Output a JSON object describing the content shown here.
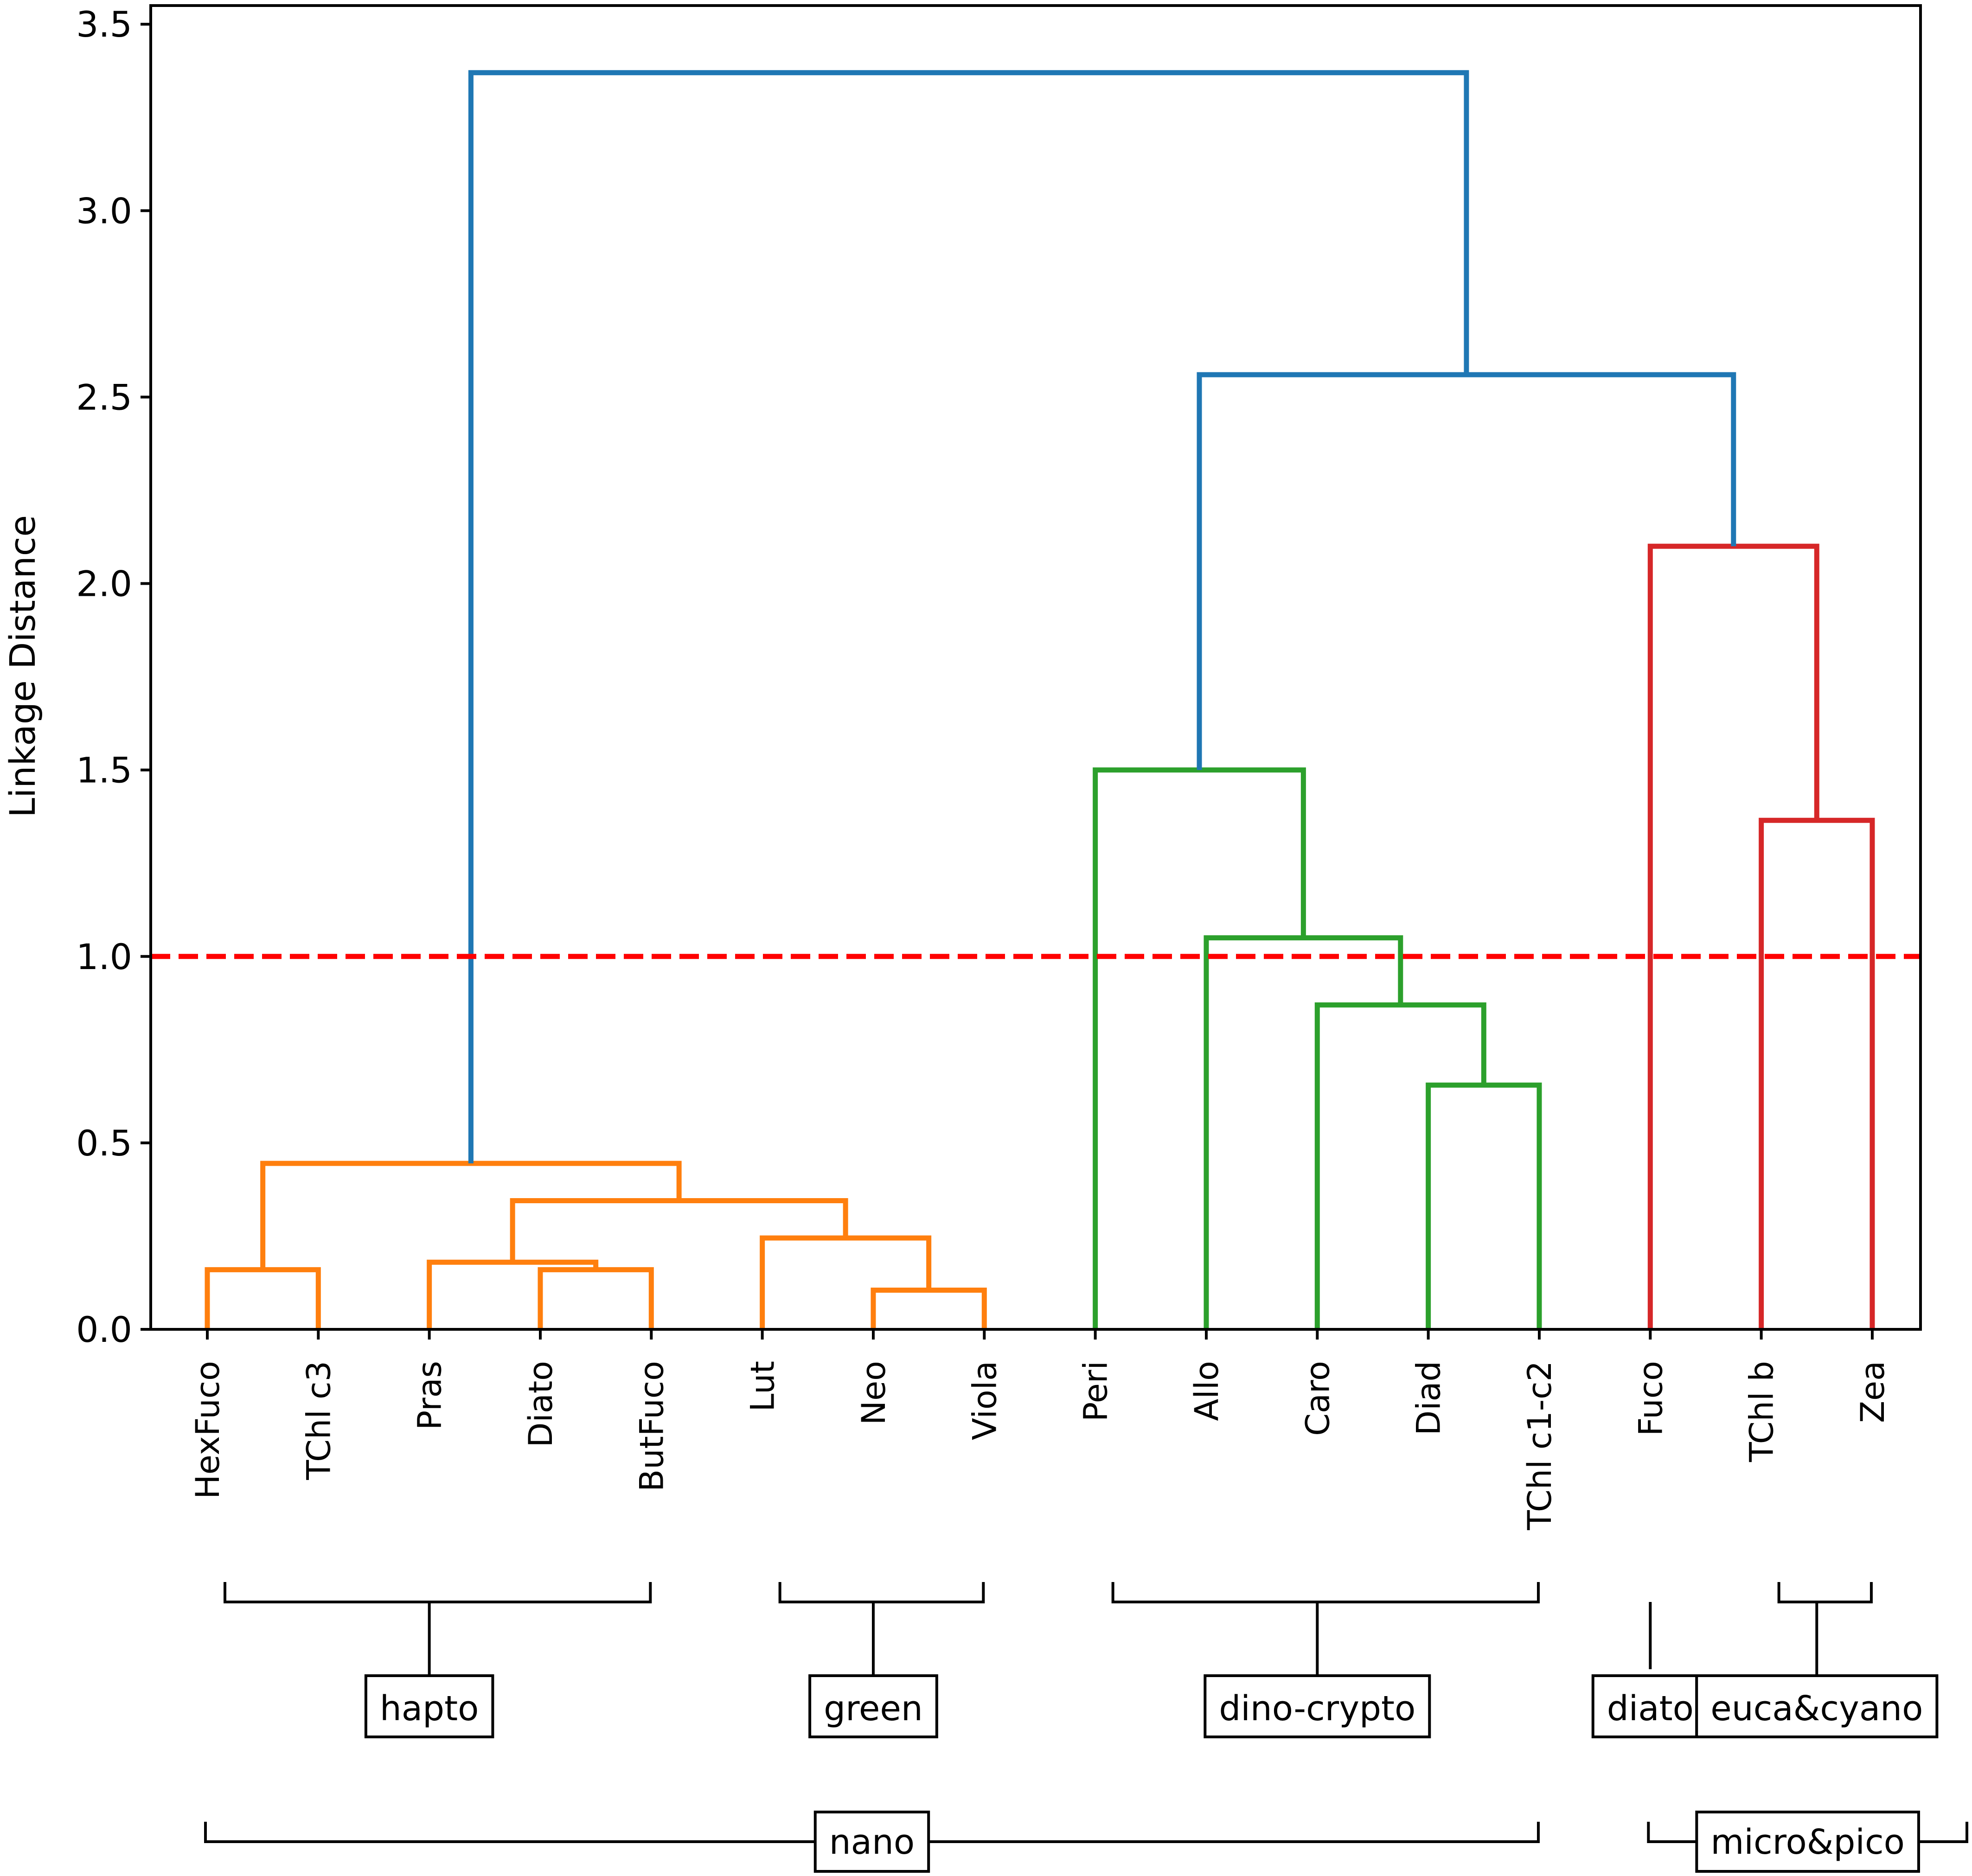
{
  "chart_data": {
    "type": "dendrogram",
    "ylabel": "Linkage Distance",
    "ylim": [
      0,
      3.55
    ],
    "yticks": [
      "0.0",
      "0.5",
      "1.0",
      "1.5",
      "2.0",
      "2.5",
      "3.0",
      "3.5"
    ],
    "threshold": 1.0,
    "colors": {
      "orange": "#ff7f0e",
      "green": "#2ca02c",
      "red": "#d62728",
      "blue": "#1f77b4",
      "threshold": "#ff0000"
    },
    "leaves": [
      "HexFuco",
      "TChl c3",
      "Pras",
      "Diato",
      "ButFuco",
      "Lut",
      "Neo",
      "Viola",
      "Peri",
      "Allo",
      "Caro",
      "Diad",
      "TChl c1-c2",
      "Fuco",
      "TChl b",
      "Zea"
    ],
    "links": [
      {
        "x": [
          0,
          1
        ],
        "y": [
          0,
          0
        ],
        "h": 0.16,
        "color": "orange"
      },
      {
        "x": [
          3,
          4
        ],
        "y": [
          0,
          0
        ],
        "h": 0.16,
        "color": "orange"
      },
      {
        "x": [
          2,
          3.5
        ],
        "y": [
          0,
          0.16
        ],
        "h": 0.18,
        "color": "orange"
      },
      {
        "x": [
          6,
          7
        ],
        "y": [
          0,
          0
        ],
        "h": 0.105,
        "color": "orange"
      },
      {
        "x": [
          5,
          6.5
        ],
        "y": [
          0,
          0.105
        ],
        "h": 0.245,
        "color": "orange"
      },
      {
        "x": [
          2.75,
          5.75
        ],
        "y": [
          0.18,
          0.245
        ],
        "h": 0.345,
        "color": "orange"
      },
      {
        "x": [
          0.5,
          4.25
        ],
        "y": [
          0.16,
          0.345
        ],
        "h": 0.445,
        "color": "orange"
      },
      {
        "x": [
          11,
          12
        ],
        "y": [
          0,
          0
        ],
        "h": 0.655,
        "color": "green"
      },
      {
        "x": [
          10,
          11.5
        ],
        "y": [
          0,
          0.655
        ],
        "h": 0.87,
        "color": "green"
      },
      {
        "x": [
          9,
          10.75
        ],
        "y": [
          0,
          0.87
        ],
        "h": 1.05,
        "color": "green"
      },
      {
        "x": [
          8,
          9.875
        ],
        "y": [
          0,
          1.05
        ],
        "h": 1.5,
        "color": "green"
      },
      {
        "x": [
          14,
          15
        ],
        "y": [
          0,
          0
        ],
        "h": 1.365,
        "color": "red"
      },
      {
        "x": [
          13,
          14.5
        ],
        "y": [
          0,
          1.365
        ],
        "h": 2.1,
        "color": "red"
      },
      {
        "x": [
          8.9375,
          13.75
        ],
        "y": [
          1.5,
          2.1
        ],
        "h": 2.56,
        "color": "blue"
      },
      {
        "x": [
          2.375,
          11.34375
        ],
        "y": [
          0.445,
          2.56
        ],
        "h": 3.37,
        "color": "blue"
      }
    ]
  },
  "groups": [
    {
      "label": "hapto",
      "from": 0,
      "to": 4
    },
    {
      "label": "green",
      "from": 5,
      "to": 7
    },
    {
      "label": "dino-crypto",
      "from": 8,
      "to": 12
    },
    {
      "label": "diato",
      "from": 13,
      "to": 13
    },
    {
      "label": "euca&cyano",
      "from": 14,
      "to": 15
    }
  ],
  "supergroups": [
    {
      "label": "nano",
      "from": 0,
      "to": 12
    },
    {
      "label": "micro&pico",
      "from": 13,
      "to": 15
    }
  ]
}
